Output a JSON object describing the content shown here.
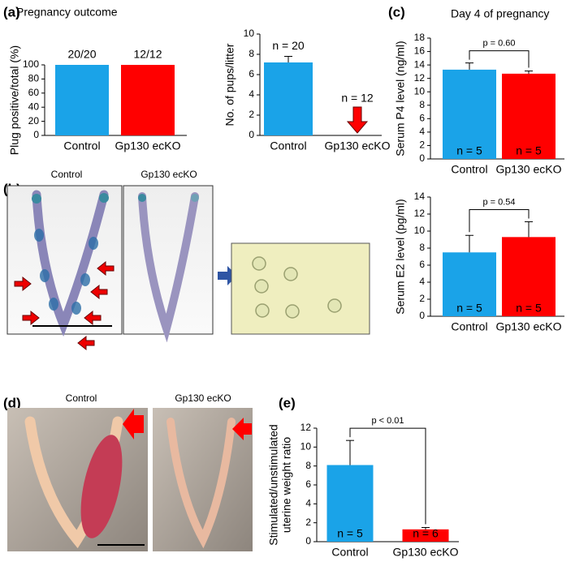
{
  "panels": {
    "letters": [
      "(a)",
      "(b)",
      "(c)",
      "(d)",
      "(e)"
    ],
    "photo_labels_b": [
      "Control",
      "Gp130 ecKO"
    ],
    "photo_labels_d": [
      "Control",
      "Gp130 ecKO"
    ]
  },
  "chart_data": [
    {
      "type": "bar",
      "title": "Pregnancy outcome",
      "ylabel": [
        "Plug positive/total (%)"
      ],
      "categories": [
        "Control",
        "Gp130 ecKO"
      ],
      "colors": [
        "#1aa3e8",
        "#ff0000"
      ],
      "values": [
        100,
        100
      ],
      "annotations": [
        "20/20",
        "12/12"
      ],
      "ylim": [
        0,
        100
      ],
      "yticks": [
        0,
        20,
        40,
        60,
        80,
        100
      ],
      "grid": false
    },
    {
      "type": "bar",
      "ylabel": [
        "No. of pups/litter"
      ],
      "categories": [
        "Control",
        "Gp130 ecKO"
      ],
      "colors": [
        "#1aa3e8",
        "#ff0000"
      ],
      "values": [
        7.2,
        0
      ],
      "errors": [
        0.6,
        null
      ],
      "annotations": [
        "n = 20",
        "n = 12"
      ],
      "ylim": [
        0,
        10
      ],
      "yticks": [
        0,
        2,
        4,
        6,
        8,
        10
      ],
      "grid": false
    },
    {
      "type": "bar",
      "title": "Day 4 of pregnancy",
      "ylabel": [
        "Serum P4 level (ng/ml)"
      ],
      "categories": [
        "Control",
        "Gp130 ecKO"
      ],
      "colors": [
        "#1aa3e8",
        "#ff0000"
      ],
      "values": [
        13.3,
        12.7
      ],
      "errors": [
        1.0,
        0.4
      ],
      "annotations": [
        "n = 5",
        "n = 5"
      ],
      "p_label": "p = 0.60",
      "ylim": [
        0,
        18
      ],
      "yticks": [
        0,
        2,
        4,
        6,
        8,
        10,
        12,
        14,
        16,
        18
      ],
      "grid": false
    },
    {
      "type": "bar",
      "ylabel": [
        "Serum E2 level (pg/ml)"
      ],
      "categories": [
        "Control",
        "Gp130 ecKO"
      ],
      "colors": [
        "#1aa3e8",
        "#ff0000"
      ],
      "values": [
        7.5,
        9.3
      ],
      "errors": [
        2.0,
        1.8
      ],
      "annotations": [
        "n = 5",
        "n = 5"
      ],
      "p_label": "p = 0.54",
      "ylim": [
        0,
        14
      ],
      "yticks": [
        0,
        2,
        4,
        6,
        8,
        10,
        12,
        14
      ],
      "grid": false
    },
    {
      "type": "bar",
      "ylabel": [
        "Stimulated/unstimulated",
        "uterine weight ratio"
      ],
      "categories": [
        "Control",
        "Gp130 ecKO"
      ],
      "colors": [
        "#1aa3e8",
        "#ff0000"
      ],
      "values": [
        8.1,
        1.3
      ],
      "errors": [
        2.6,
        0.2
      ],
      "annotations": [
        "n = 5",
        "n = 6"
      ],
      "p_label": "p < 0.01",
      "ylim": [
        0,
        12
      ],
      "yticks": [
        0,
        2,
        4,
        6,
        8,
        10,
        12
      ],
      "grid": false
    }
  ]
}
